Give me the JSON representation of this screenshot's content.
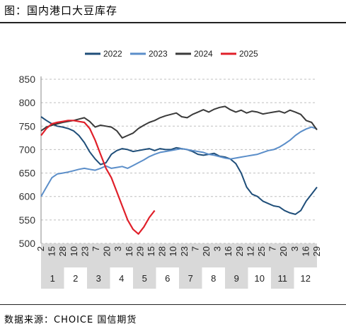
{
  "title": "图：国内港口大豆库存",
  "source": "数据来源：CHOICE 国信期货",
  "colors": {
    "s2022": "#1f4e79",
    "s2023": "#5b8ec9",
    "s2024": "#3a3a3a",
    "s2025": "#e0202a",
    "grid": "#bfbfbf",
    "band": "#d9d9d9"
  },
  "chart_data": {
    "type": "line",
    "title": "",
    "xlabel": "",
    "ylabel": "",
    "ylim": [
      500,
      850
    ],
    "yticks": [
      500,
      550,
      600,
      650,
      700,
      750,
      800,
      850
    ],
    "grid": true,
    "legend": "top",
    "x_day_labels": [
      "2",
      "15",
      "28",
      "10",
      "23",
      "7",
      "20",
      "3",
      "16",
      "29",
      "15",
      "28",
      "10",
      "23",
      "7",
      "20",
      "3",
      "16",
      "29",
      "12",
      "25",
      "7",
      "20",
      "3",
      "16",
      "29"
    ],
    "x_month_labels": [
      "1",
      "2",
      "3",
      "4",
      "5",
      "6",
      "7",
      "8",
      "9",
      "10",
      "11",
      "12"
    ],
    "series": [
      {
        "name": "2022",
        "color_key": "s2022",
        "x": [
          1,
          2,
          3,
          4,
          5,
          6,
          7,
          8,
          9,
          10,
          11,
          12,
          13,
          14,
          15,
          16,
          17,
          18,
          19,
          20,
          21,
          22,
          23,
          24,
          25,
          26,
          27,
          28,
          29,
          30,
          31,
          32,
          33,
          34,
          35,
          36,
          37,
          38,
          39,
          40,
          41,
          42,
          43,
          44,
          45,
          46,
          47,
          48,
          49,
          50,
          51,
          52
        ],
        "values": [
          770,
          762,
          755,
          750,
          748,
          745,
          740,
          730,
          715,
          695,
          680,
          668,
          672,
          690,
          698,
          702,
          700,
          696,
          698,
          700,
          702,
          698,
          702,
          700,
          700,
          704,
          702,
          700,
          696,
          690,
          688,
          690,
          692,
          686,
          684,
          680,
          670,
          650,
          620,
          605,
          600,
          590,
          585,
          580,
          578,
          570,
          565,
          562,
          570,
          590,
          605,
          620
        ]
      },
      {
        "name": "2023",
        "color_key": "s2023",
        "x": [
          1,
          2,
          3,
          4,
          5,
          6,
          7,
          8,
          9,
          10,
          11,
          12,
          13,
          14,
          15,
          16,
          17,
          18,
          19,
          20,
          21,
          22,
          23,
          24,
          25,
          26,
          27,
          28,
          29,
          30,
          31,
          32,
          33,
          34,
          35,
          36,
          37,
          38,
          39,
          40,
          41,
          42,
          43,
          44,
          45,
          46,
          47,
          48,
          49,
          50,
          51,
          52
        ],
        "values": [
          600,
          620,
          640,
          648,
          650,
          652,
          655,
          658,
          660,
          658,
          656,
          660,
          665,
          660,
          662,
          664,
          660,
          666,
          672,
          678,
          685,
          690,
          694,
          696,
          698,
          700,
          702,
          700,
          698,
          696,
          694,
          690,
          688,
          685,
          682,
          680,
          682,
          684,
          686,
          688,
          690,
          694,
          698,
          700,
          705,
          712,
          720,
          730,
          738,
          744,
          748,
          744
        ]
      },
      {
        "name": "2024",
        "color_key": "s2024",
        "x": [
          1,
          2,
          3,
          4,
          5,
          6,
          7,
          8,
          9,
          10,
          11,
          12,
          13,
          14,
          15,
          16,
          17,
          18,
          19,
          20,
          21,
          22,
          23,
          24,
          25,
          26,
          27,
          28,
          29,
          30,
          31,
          32,
          33,
          34,
          35,
          36,
          37,
          38,
          39,
          40,
          41,
          42,
          43,
          44,
          45,
          46,
          47,
          48,
          49,
          50,
          51,
          52
        ],
        "values": [
          740,
          748,
          752,
          755,
          758,
          760,
          762,
          765,
          768,
          760,
          748,
          752,
          750,
          748,
          740,
          725,
          730,
          735,
          745,
          752,
          758,
          762,
          768,
          772,
          775,
          778,
          770,
          768,
          775,
          780,
          785,
          780,
          786,
          790,
          792,
          785,
          780,
          784,
          778,
          782,
          780,
          776,
          778,
          780,
          782,
          778,
          784,
          780,
          775,
          762,
          758,
          742
        ]
      },
      {
        "name": "2025",
        "color_key": "s2025",
        "x": [
          1,
          2,
          3,
          4,
          5,
          6,
          7,
          8,
          9,
          10,
          11,
          12,
          13,
          14,
          15,
          16,
          17,
          18,
          19,
          20,
          21,
          22
        ],
        "values": [
          730,
          745,
          755,
          758,
          760,
          762,
          762,
          760,
          758,
          745,
          720,
          690,
          660,
          640,
          610,
          580,
          550,
          530,
          520,
          535,
          555,
          570
        ]
      }
    ]
  }
}
